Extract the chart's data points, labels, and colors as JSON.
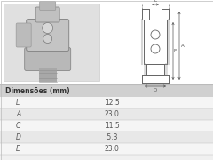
{
  "title": "Dimensões (mm)",
  "rows": [
    [
      "L",
      "12.5"
    ],
    [
      "A",
      "23.0"
    ],
    [
      "C",
      "11.5"
    ],
    [
      "D",
      " 5.3"
    ],
    [
      "E",
      "23.0"
    ]
  ],
  "bg_color": "#f0f0f0",
  "header_bg": "#d0d0d0",
  "row_bg_odd": "#f5f5f5",
  "row_bg_even": "#e8e8e8",
  "border_color": "#bbbbbb",
  "text_color": "#555555",
  "title_color": "#333333",
  "top_panel_bg": "#ffffff",
  "photo_bg": "#e0e0e0",
  "draw_color": "#666666",
  "draw_lw": 0.7
}
